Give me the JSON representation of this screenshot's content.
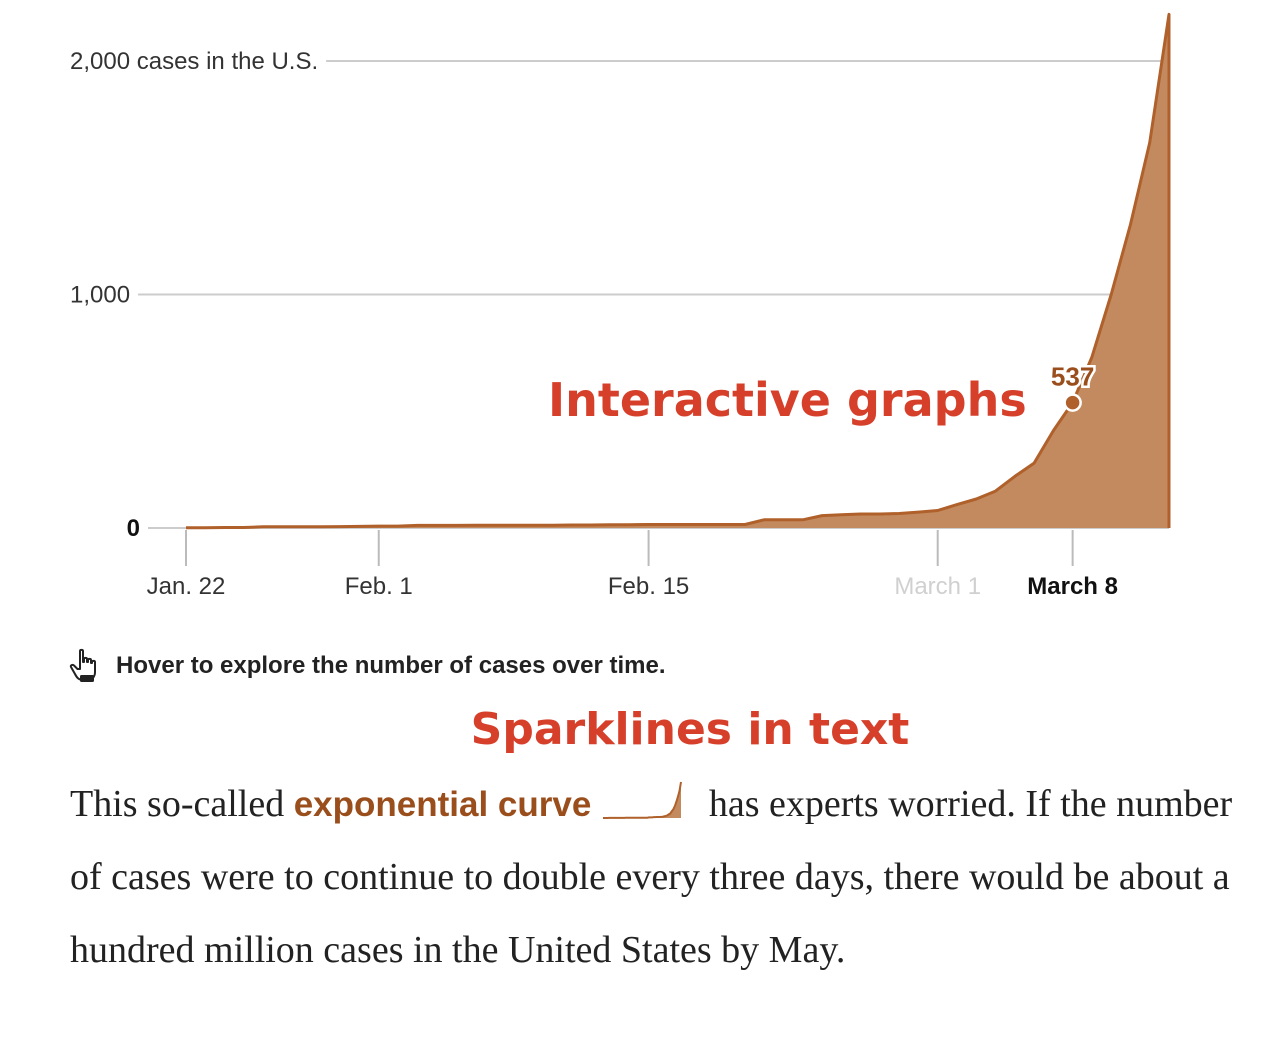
{
  "chart_data": {
    "type": "area",
    "x": [
      "Jan. 22",
      "Jan. 23",
      "Jan. 24",
      "Jan. 25",
      "Jan. 26",
      "Jan. 27",
      "Jan. 28",
      "Jan. 29",
      "Jan. 30",
      "Jan. 31",
      "Feb. 1",
      "Feb. 2",
      "Feb. 3",
      "Feb. 4",
      "Feb. 5",
      "Feb. 6",
      "Feb. 7",
      "Feb. 8",
      "Feb. 9",
      "Feb. 10",
      "Feb. 11",
      "Feb. 12",
      "Feb. 13",
      "Feb. 14",
      "Feb. 15",
      "Feb. 16",
      "Feb. 17",
      "Feb. 18",
      "Feb. 19",
      "Feb. 20",
      "Feb. 21",
      "Feb. 22",
      "Feb. 23",
      "Feb. 24",
      "Feb. 25",
      "Feb. 26",
      "Feb. 27",
      "Feb. 28",
      "Feb. 29",
      "March 1",
      "March 2",
      "March 3",
      "March 4",
      "March 5",
      "March 6",
      "March 7",
      "March 8",
      "March 9",
      "March 10",
      "March 11",
      "March 12",
      "March 13"
    ],
    "series": [
      {
        "values": [
          1,
          1,
          2,
          2,
          5,
          5,
          5,
          5,
          6,
          7,
          8,
          8,
          11,
          11,
          11,
          12,
          12,
          12,
          12,
          12,
          13,
          13,
          14,
          14,
          15,
          15,
          15,
          15,
          15,
          15,
          35,
          35,
          35,
          53,
          57,
          60,
          60,
          62,
          68,
          75,
          100,
          124,
          158,
          221,
          278,
          417,
          537,
          732,
          1000,
          1300,
          1650,
          2200
        ]
      }
    ],
    "y_ticks": [
      {
        "value": 0,
        "label": "0"
      },
      {
        "value": 1000,
        "label": "1,000"
      },
      {
        "value": 2000,
        "label": "2,000 cases in the U.S."
      }
    ],
    "x_ticks": [
      {
        "index": 0,
        "label": "Jan. 22",
        "style": "normal"
      },
      {
        "index": 10,
        "label": "Feb. 1",
        "style": "normal"
      },
      {
        "index": 24,
        "label": "Feb. 15",
        "style": "normal"
      },
      {
        "index": 39,
        "label": "March 1",
        "style": "faded"
      },
      {
        "index": 46,
        "label": "March 8",
        "style": "bold"
      }
    ],
    "ylim": [
      0,
      2200
    ],
    "grid": true,
    "highlight": {
      "index": 46,
      "value": 537,
      "label": "537"
    },
    "annotation": "Interactive graphs",
    "colors": {
      "line": "#b0602a",
      "fill": "#c28a5e",
      "annotation": "#d6402b",
      "highlight_text": "#9a4e1c"
    }
  },
  "hint": {
    "icon": "pointing-hand-icon",
    "text": "Hover to explore the number of cases over time."
  },
  "sparkline_title": "Sparklines in text",
  "paragraph": {
    "before": "This so-called ",
    "term": "exponential curve",
    "after": " has experts worried. If the number of cases were to continue to double every three days, there would be about a hundred million cases in the United States by May."
  }
}
